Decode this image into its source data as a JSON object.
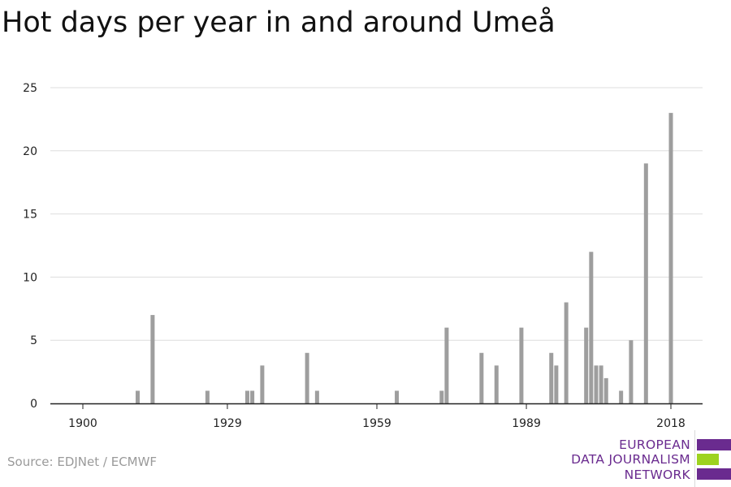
{
  "title": "Hot days per year in and around Umeå",
  "source": "Source: EDJNet / ECMWF",
  "logo": {
    "line1": "EUROPEAN",
    "line2": "DATA JOURNALISM",
    "line3": "NETWORK"
  },
  "colors": {
    "bar": "#9e9e9e",
    "grid": "#dddddd",
    "axis": "#222222",
    "logo_purple": "#6a2b8f",
    "logo_green": "#9dd31f"
  },
  "chart_data": {
    "type": "bar",
    "title": "Hot days per year in and around Umeå",
    "xlabel": "",
    "ylabel": "",
    "x_ticks": [
      1900,
      1929,
      1959,
      1989,
      2018
    ],
    "y_ticks": [
      0,
      5,
      10,
      15,
      20,
      25
    ],
    "xlim": [
      1900,
      2018
    ],
    "ylim": [
      0,
      25
    ],
    "grid": true,
    "series": [
      {
        "points": [
          {
            "x": 1911,
            "y": 1
          },
          {
            "x": 1914,
            "y": 7
          },
          {
            "x": 1925,
            "y": 1
          },
          {
            "x": 1933,
            "y": 1
          },
          {
            "x": 1934,
            "y": 1
          },
          {
            "x": 1936,
            "y": 3
          },
          {
            "x": 1945,
            "y": 4
          },
          {
            "x": 1947,
            "y": 1
          },
          {
            "x": 1963,
            "y": 1
          },
          {
            "x": 1972,
            "y": 1
          },
          {
            "x": 1973,
            "y": 6
          },
          {
            "x": 1980,
            "y": 4
          },
          {
            "x": 1983,
            "y": 3
          },
          {
            "x": 1988,
            "y": 6
          },
          {
            "x": 1994,
            "y": 4
          },
          {
            "x": 1995,
            "y": 3
          },
          {
            "x": 1997,
            "y": 8
          },
          {
            "x": 2001,
            "y": 6
          },
          {
            "x": 2002,
            "y": 12
          },
          {
            "x": 2003,
            "y": 3
          },
          {
            "x": 2004,
            "y": 3
          },
          {
            "x": 2005,
            "y": 2
          },
          {
            "x": 2008,
            "y": 1
          },
          {
            "x": 2010,
            "y": 5
          },
          {
            "x": 2013,
            "y": 19
          },
          {
            "x": 2018,
            "y": 23
          }
        ]
      }
    ]
  }
}
